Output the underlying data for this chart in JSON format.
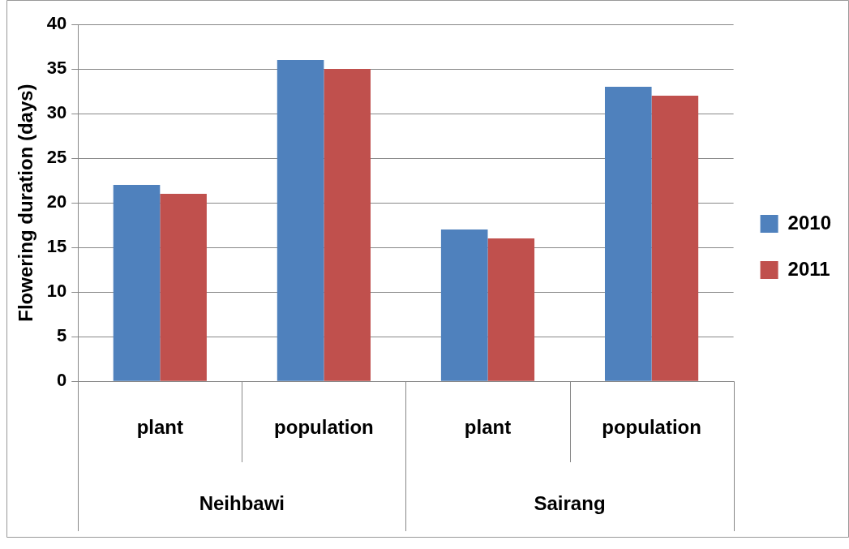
{
  "chart_data": {
    "type": "bar",
    "ylabel": "Flowering duration (days)",
    "categories": [
      "plant",
      "population",
      "plant",
      "population"
    ],
    "annotations": [
      "Neihbawi",
      "Sairang"
    ],
    "series": [
      {
        "name": "2010",
        "color": "#4f81bd",
        "values": [
          22,
          36,
          17,
          33
        ]
      },
      {
        "name": "2011",
        "color": "#c0504d",
        "values": [
          21,
          35,
          16,
          32
        ]
      }
    ],
    "ylim": [
      0,
      40
    ],
    "yticks": [
      0,
      5,
      10,
      15,
      20,
      25,
      30,
      35,
      40
    ],
    "grid": "y",
    "legend": "right"
  }
}
